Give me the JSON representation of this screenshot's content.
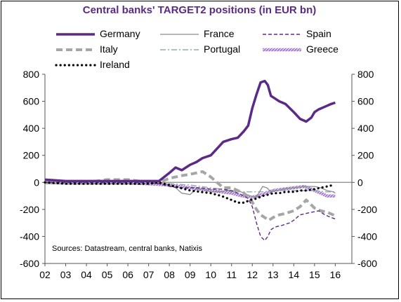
{
  "chart_data": {
    "type": "line",
    "title": "Central banks' TARGET2 positions (in EUR bn)",
    "source": "Sources: Datastream, central banks, Natixis",
    "xlabel": "",
    "ylabel": "",
    "ylim": [
      -600,
      800
    ],
    "yticks": [
      -600,
      -400,
      -200,
      0,
      200,
      400,
      600,
      800
    ],
    "xlim": [
      2002,
      2016.8
    ],
    "xticks": [
      {
        "x": 2002.0,
        "label": "02"
      },
      {
        "x": 2003.0,
        "label": "03"
      },
      {
        "x": 2004.0,
        "label": "04"
      },
      {
        "x": 2005.0,
        "label": "05"
      },
      {
        "x": 2006.0,
        "label": "06"
      },
      {
        "x": 2007.0,
        "label": "07"
      },
      {
        "x": 2008.0,
        "label": "08"
      },
      {
        "x": 2009.0,
        "label": "09"
      },
      {
        "x": 2010.0,
        "label": "10"
      },
      {
        "x": 2011.0,
        "label": "11"
      },
      {
        "x": 2012.0,
        "label": "12"
      },
      {
        "x": 2013.0,
        "label": "13"
      },
      {
        "x": 2014.0,
        "label": "14"
      },
      {
        "x": 2015.0,
        "label": "15"
      },
      {
        "x": 2016.0,
        "label": "16"
      }
    ],
    "grid": false,
    "legend_position": "top",
    "series": [
      {
        "name": "Germany",
        "color": "#5b2a86",
        "style": "solid-thick",
        "x": [
          2002.0,
          2003.0,
          2004.0,
          2005.0,
          2006.0,
          2007.0,
          2007.5,
          2008.0,
          2008.3,
          2008.6,
          2009.0,
          2009.3,
          2009.6,
          2010.0,
          2010.3,
          2010.6,
          2011.0,
          2011.3,
          2011.6,
          2011.8,
          2012.0,
          2012.2,
          2012.4,
          2012.6,
          2012.75,
          2012.9,
          2013.1,
          2013.3,
          2013.6,
          2014.0,
          2014.3,
          2014.6,
          2014.85,
          2015.0,
          2015.2,
          2015.5,
          2015.8,
          2016.0
        ],
        "y": [
          20,
          10,
          10,
          10,
          10,
          10,
          10,
          70,
          110,
          90,
          130,
          150,
          180,
          200,
          250,
          300,
          320,
          330,
          380,
          420,
          550,
          650,
          740,
          750,
          720,
          640,
          620,
          600,
          580,
          520,
          470,
          450,
          480,
          520,
          540,
          560,
          580,
          590
        ]
      },
      {
        "name": "France",
        "color": "#8c8c8c",
        "style": "solid-thin",
        "x": [
          2002.0,
          2003.0,
          2004.0,
          2005.0,
          2006.0,
          2007.0,
          2007.5,
          2008.0,
          2008.3,
          2008.6,
          2009.0,
          2009.3,
          2009.6,
          2010.0,
          2010.4,
          2010.8,
          2011.0,
          2011.3,
          2011.6,
          2011.9,
          2012.2,
          2012.5,
          2012.7,
          2012.9,
          2013.2,
          2013.5,
          2014.0,
          2014.5,
          2015.0,
          2015.3,
          2015.6,
          2015.9,
          2016.0
        ],
        "y": [
          -10,
          -10,
          -10,
          -10,
          -10,
          -10,
          -10,
          -20,
          -40,
          -80,
          -90,
          -50,
          -50,
          -70,
          -70,
          -60,
          -70,
          -60,
          -80,
          -100,
          -110,
          -30,
          -40,
          -70,
          -60,
          -50,
          -40,
          -30,
          -30,
          -40,
          -60,
          -70,
          -80
        ]
      },
      {
        "name": "Spain",
        "color": "#5b2a86",
        "style": "dashed-thin",
        "x": [
          2002.0,
          2003.0,
          2004.0,
          2005.0,
          2006.0,
          2007.0,
          2007.5,
          2008.0,
          2008.5,
          2009.0,
          2009.5,
          2010.0,
          2010.5,
          2011.0,
          2011.3,
          2011.6,
          2011.8,
          2012.0,
          2012.2,
          2012.4,
          2012.6,
          2012.75,
          2012.9,
          2013.1,
          2013.4,
          2013.8,
          2014.0,
          2014.3,
          2014.6,
          2014.9,
          2015.2,
          2015.5,
          2015.8,
          2016.0
        ],
        "y": [
          0,
          0,
          0,
          0,
          0,
          0,
          -10,
          -30,
          -40,
          -40,
          -40,
          -50,
          -50,
          -60,
          -80,
          -100,
          -120,
          -180,
          -300,
          -400,
          -430,
          -400,
          -350,
          -330,
          -320,
          -300,
          -280,
          -240,
          -230,
          -220,
          -210,
          -240,
          -260,
          -270
        ]
      },
      {
        "name": "Italy",
        "color": "#a6a6a6",
        "style": "dashed-thick",
        "x": [
          2002.0,
          2003.0,
          2004.0,
          2005.0,
          2006.0,
          2007.0,
          2007.5,
          2008.0,
          2008.3,
          2008.6,
          2009.0,
          2009.3,
          2009.6,
          2010.0,
          2010.3,
          2010.6,
          2011.0,
          2011.3,
          2011.6,
          2011.9,
          2012.2,
          2012.4,
          2012.6,
          2012.8,
          2013.0,
          2013.3,
          2013.6,
          2014.0,
          2014.3,
          2014.6,
          2015.0,
          2015.3,
          2015.6,
          2015.9,
          2016.0
        ],
        "y": [
          0,
          0,
          0,
          20,
          20,
          0,
          0,
          30,
          40,
          50,
          60,
          70,
          80,
          40,
          0,
          -40,
          -40,
          -60,
          -80,
          -120,
          -200,
          -240,
          -260,
          -280,
          -260,
          -240,
          -230,
          -210,
          -180,
          -130,
          -190,
          -210,
          -220,
          -240,
          -250
        ]
      },
      {
        "name": "Portugal",
        "color": "#8fa9b9",
        "style": "dashdot",
        "x": [
          2002.0,
          2004.0,
          2006.0,
          2007.0,
          2008.0,
          2009.0,
          2010.0,
          2010.5,
          2011.0,
          2011.5,
          2012.0,
          2012.5,
          2013.0,
          2013.5,
          2014.0,
          2014.5,
          2015.0,
          2015.5,
          2016.0
        ],
        "y": [
          0,
          0,
          0,
          0,
          -10,
          -20,
          -40,
          -50,
          -60,
          -70,
          -70,
          -70,
          -60,
          -60,
          -60,
          -60,
          -60,
          -70,
          -70
        ]
      },
      {
        "name": "Greece",
        "color": "#b090d0",
        "style": "hatched-thick",
        "x": [
          2002.0,
          2003.0,
          2004.0,
          2005.0,
          2006.0,
          2007.0,
          2008.0,
          2008.5,
          2009.0,
          2009.5,
          2010.0,
          2010.5,
          2011.0,
          2011.5,
          2012.0,
          2012.5,
          2013.0,
          2013.5,
          2014.0,
          2014.5,
          2015.0,
          2015.3,
          2015.6,
          2015.9,
          2016.0
        ],
        "y": [
          0,
          -5,
          -5,
          -5,
          -5,
          -10,
          -20,
          -30,
          -40,
          -50,
          -60,
          -70,
          -80,
          -100,
          -110,
          -90,
          -60,
          -50,
          -40,
          -30,
          -60,
          -80,
          -100,
          -100,
          -100
        ]
      },
      {
        "name": "Ireland",
        "color": "#000000",
        "style": "dotted",
        "x": [
          2002.0,
          2003.0,
          2004.0,
          2005.0,
          2006.0,
          2007.0,
          2007.5,
          2008.0,
          2008.5,
          2009.0,
          2009.5,
          2010.0,
          2010.5,
          2011.0,
          2011.3,
          2011.6,
          2011.9,
          2012.2,
          2012.5,
          2012.8,
          2013.0,
          2013.3,
          2013.6,
          2014.0,
          2014.3,
          2014.6,
          2015.0,
          2015.3,
          2015.6,
          2015.9
        ],
        "y": [
          0,
          -10,
          -10,
          -10,
          -10,
          -10,
          0,
          -20,
          -40,
          -60,
          -70,
          -80,
          -100,
          -130,
          -150,
          -150,
          -130,
          -120,
          -100,
          -90,
          -80,
          -80,
          -70,
          -70,
          -60,
          -60,
          -50,
          -40,
          -30,
          -20
        ]
      }
    ]
  }
}
